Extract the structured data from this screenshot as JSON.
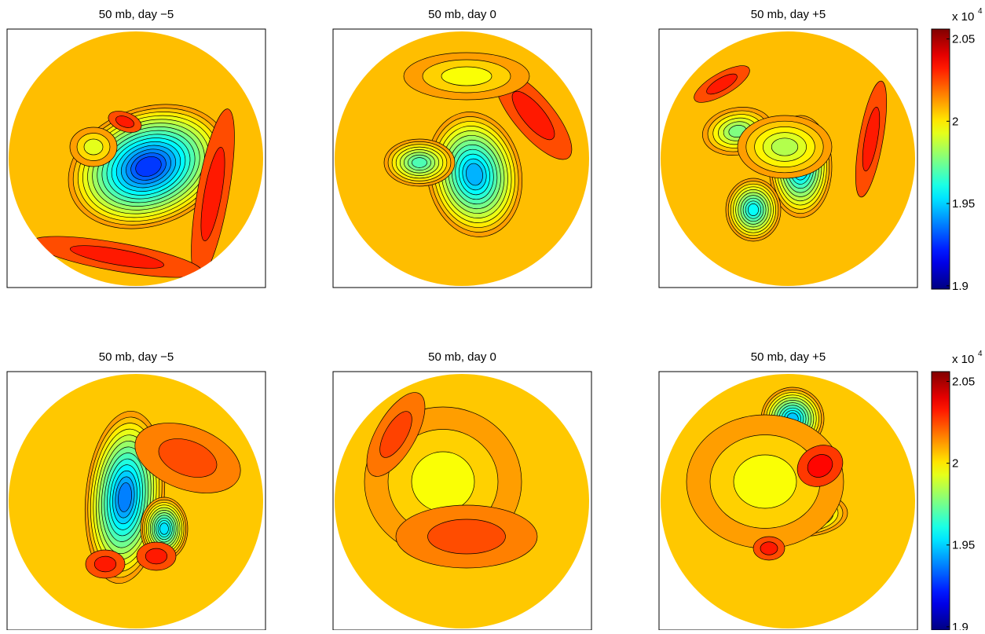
{
  "chart_data": [
    {
      "type": "contour",
      "title": "50 mb, day −5"
    },
    {
      "type": "contour",
      "title": "50 mb, day 0"
    },
    {
      "type": "contour",
      "title": "50 mb, day +5"
    },
    {
      "type": "colorbar",
      "multiplier_base": "x 10",
      "multiplier_exponent": "4",
      "ylim": [
        1.898,
        2.056
      ],
      "yticks": [
        1.9,
        1.95,
        2,
        2.05
      ]
    },
    {
      "type": "contour",
      "title": "50 mb, day −5"
    },
    {
      "type": "contour",
      "title": "50 mb, day 0"
    },
    {
      "type": "contour",
      "title": "50 mb, day +5"
    },
    {
      "type": "colorbar",
      "multiplier_base": "x 10",
      "multiplier_exponent": "4",
      "ylim": [
        1.898,
        2.056
      ],
      "yticks": [
        1.9,
        1.95,
        2,
        2.05
      ]
    }
  ]
}
